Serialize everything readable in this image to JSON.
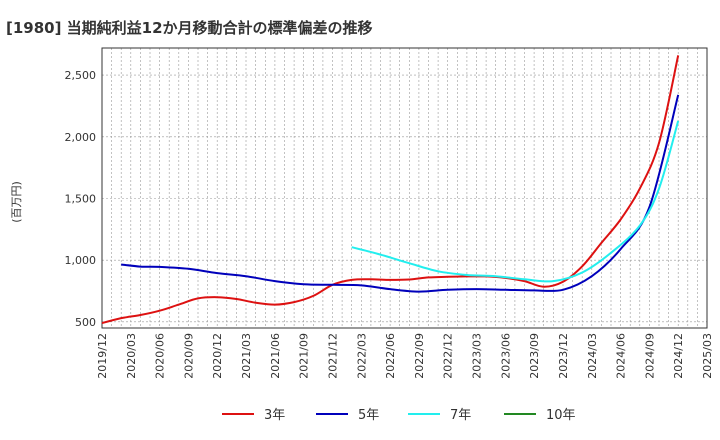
{
  "chart_data": {
    "type": "line",
    "title": "[1980]  当期純利益12か月移動合計の標準偏差の推移",
    "xlabel": "",
    "ylabel": "(百万円)",
    "x_range": [
      "2019-12",
      "2025-03"
    ],
    "ylim": [
      450,
      2720
    ],
    "y_ticks": [
      500,
      1000,
      1500,
      2000,
      2500
    ],
    "y_tick_labels": [
      "500",
      "1,000",
      "1,500",
      "2,000",
      "2,500"
    ],
    "x_ticks": [
      "2019/12",
      "2020/03",
      "2020/06",
      "2020/09",
      "2020/12",
      "2021/03",
      "2021/06",
      "2021/09",
      "2021/12",
      "2022/03",
      "2022/06",
      "2022/09",
      "2022/12",
      "2023/03",
      "2023/06",
      "2023/09",
      "2023/12",
      "2024/03",
      "2024/06",
      "2024/09",
      "2024/12",
      "2025/03"
    ],
    "grid": true,
    "legend_position": "bottom",
    "series": [
      {
        "name": "3年",
        "color": "#dd1111",
        "points": [
          [
            "2019-12",
            490
          ],
          [
            "2020-02",
            530
          ],
          [
            "2020-04",
            555
          ],
          [
            "2020-06",
            590
          ],
          [
            "2020-08",
            640
          ],
          [
            "2020-10",
            690
          ],
          [
            "2020-12",
            700
          ],
          [
            "2021-02",
            685
          ],
          [
            "2021-04",
            655
          ],
          [
            "2021-06",
            640
          ],
          [
            "2021-08",
            660
          ],
          [
            "2021-10",
            710
          ],
          [
            "2021-12",
            800
          ],
          [
            "2022-02",
            840
          ],
          [
            "2022-04",
            845
          ],
          [
            "2022-06",
            840
          ],
          [
            "2022-08",
            843
          ],
          [
            "2022-10",
            860
          ],
          [
            "2022-12",
            865
          ],
          [
            "2023-02",
            868
          ],
          [
            "2023-04",
            868
          ],
          [
            "2023-06",
            856
          ],
          [
            "2023-08",
            830
          ],
          [
            "2023-10",
            785
          ],
          [
            "2023-12",
            825
          ],
          [
            "2024-02",
            950
          ],
          [
            "2024-04",
            1140
          ],
          [
            "2024-06",
            1330
          ],
          [
            "2024-08",
            1580
          ],
          [
            "2024-10",
            1950
          ],
          [
            "2024-12",
            2660
          ]
        ]
      },
      {
        "name": "5年",
        "color": "#0000bb",
        "points": [
          [
            "2020-02",
            965
          ],
          [
            "2020-04",
            948
          ],
          [
            "2020-06",
            945
          ],
          [
            "2020-09",
            930
          ],
          [
            "2020-12",
            895
          ],
          [
            "2021-03",
            870
          ],
          [
            "2021-06",
            830
          ],
          [
            "2021-09",
            805
          ],
          [
            "2021-12",
            800
          ],
          [
            "2022-03",
            795
          ],
          [
            "2022-06",
            765
          ],
          [
            "2022-09",
            745
          ],
          [
            "2022-12",
            760
          ],
          [
            "2023-03",
            765
          ],
          [
            "2023-06",
            760
          ],
          [
            "2023-09",
            755
          ],
          [
            "2023-12",
            760
          ],
          [
            "2024-03",
            870
          ],
          [
            "2024-06",
            1090
          ],
          [
            "2024-09",
            1430
          ],
          [
            "2024-12",
            2340
          ]
        ]
      },
      {
        "name": "7年",
        "color": "#22eeee",
        "points": [
          [
            "2022-02",
            1105
          ],
          [
            "2022-05",
            1045
          ],
          [
            "2022-08",
            975
          ],
          [
            "2022-11",
            910
          ],
          [
            "2023-02",
            880
          ],
          [
            "2023-05",
            870
          ],
          [
            "2023-08",
            845
          ],
          [
            "2023-11",
            830
          ],
          [
            "2024-02",
            900
          ],
          [
            "2024-05",
            1060
          ],
          [
            "2024-08",
            1280
          ],
          [
            "2024-10",
            1580
          ],
          [
            "2024-12",
            2130
          ]
        ]
      },
      {
        "name": "10年",
        "color": "#228822",
        "points": []
      }
    ]
  }
}
